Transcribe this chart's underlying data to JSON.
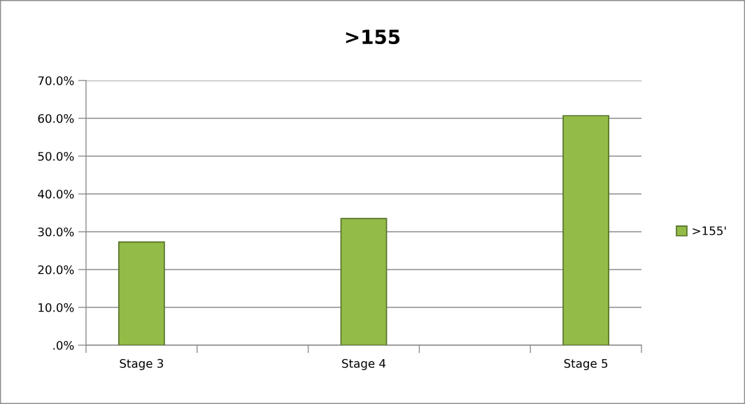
{
  "chart_data": {
    "type": "bar",
    "title": ">155",
    "categories": [
      "Stage 3",
      null,
      "Stage 4",
      null,
      "Stage 5"
    ],
    "series": [
      {
        "name": ">155'",
        "color": "#93bb47",
        "values": [
          27.3,
          null,
          33.5,
          null,
          60.7
        ]
      }
    ],
    "ylim": [
      0,
      70
    ],
    "yticks": [
      {
        "value": 0,
        "label": ".0%"
      },
      {
        "value": 10,
        "label": "10.0%"
      },
      {
        "value": 20,
        "label": "20.0%"
      },
      {
        "value": 30,
        "label": "30.0%"
      },
      {
        "value": 40,
        "label": "40.0%"
      },
      {
        "value": 50,
        "label": "50.0%"
      },
      {
        "value": 60,
        "label": "60.0%"
      },
      {
        "value": 70,
        "label": "70.0%"
      }
    ],
    "grid": "y",
    "legend": "right"
  }
}
